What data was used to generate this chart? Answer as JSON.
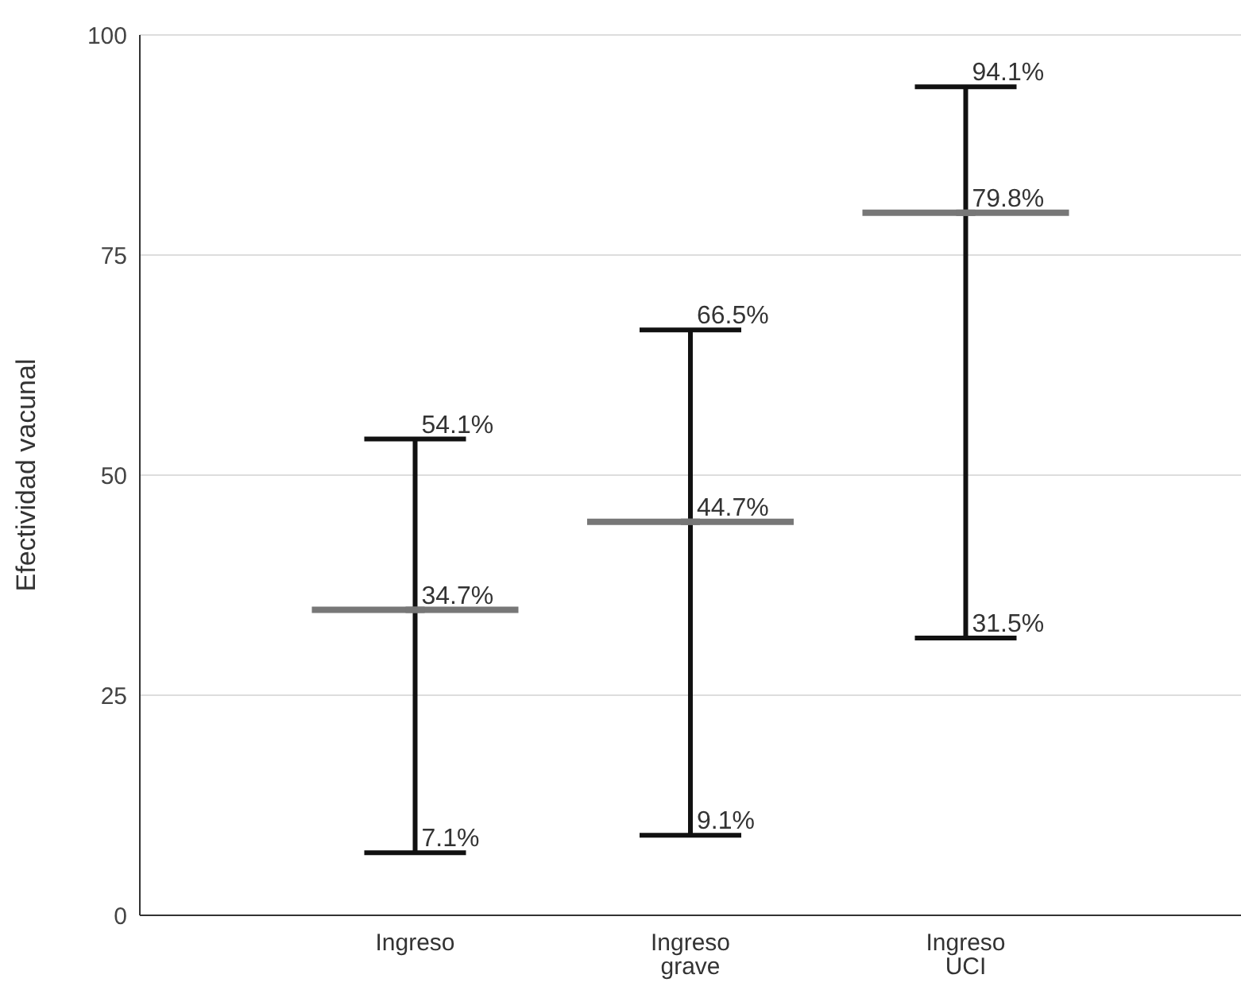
{
  "chart_data": {
    "type": "scatter",
    "ylabel": "Efectividad vacunal",
    "categories": [
      "Ingreso",
      "Ingreso grave",
      "Ingreso UCI"
    ],
    "series": [
      {
        "color": "#777777",
        "values": [
          34.7,
          44.7,
          79.8
        ],
        "value_labels": [
          "34.7%",
          "44.7%",
          "79.8%"
        ],
        "errors": [
          [
            7.1,
            54.1
          ],
          [
            9.1,
            66.5
          ],
          [
            31.5,
            94.1
          ]
        ]
      }
    ],
    "annotations": [
      {
        "text": "54.1%",
        "x": "Ingreso",
        "y": 54.1
      },
      {
        "text": "7.1%",
        "x": "Ingreso",
        "y": 7.1
      },
      {
        "text": "66.5%",
        "x": "Ingreso grave",
        "y": 66.5
      },
      {
        "text": "9.1%",
        "x": "Ingreso grave",
        "y": 9.1
      },
      {
        "text": "94.1%",
        "x": "Ingreso UCI",
        "y": 94.1
      },
      {
        "text": "31.5%",
        "x": "Ingreso UCI",
        "y": 31.5
      }
    ],
    "ylim": [
      0,
      100
    ],
    "yticks": [
      0,
      25,
      50,
      75,
      100
    ],
    "grid": "y"
  }
}
